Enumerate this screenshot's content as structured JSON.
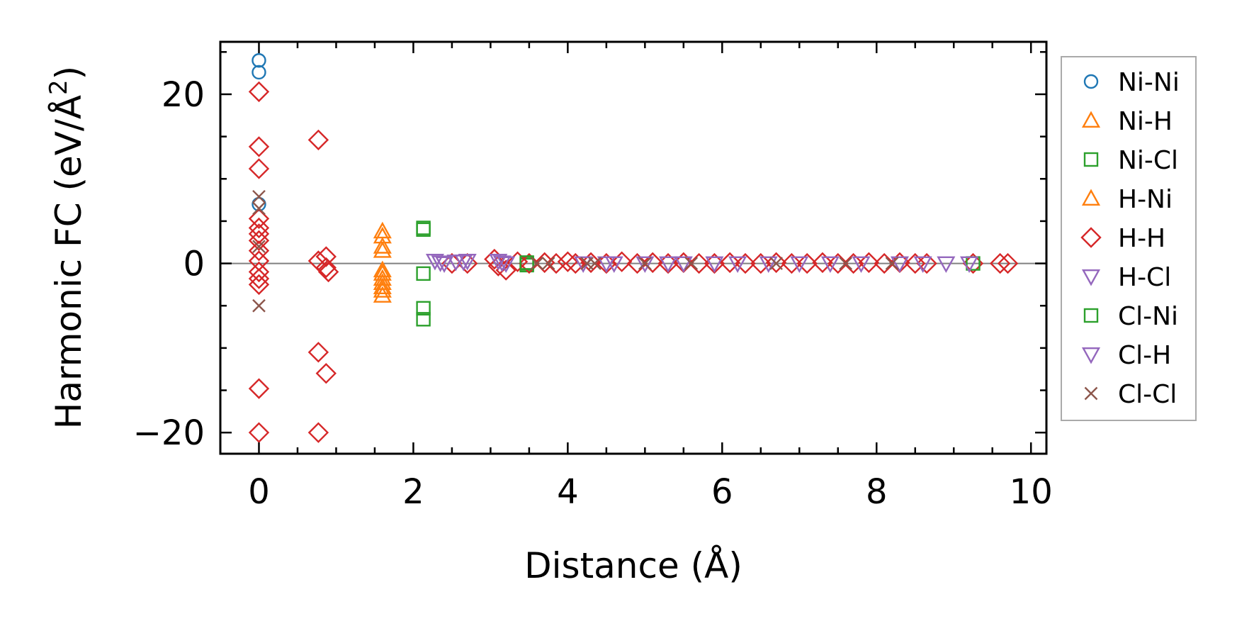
{
  "chart_data": {
    "type": "scatter",
    "title": "",
    "xlabel": "Distance (Å)",
    "ylabel_main": "Harmonic FC (eV/Å",
    "ylabel_sup": "2",
    "ylabel_close": ")",
    "xlim": [
      -0.5,
      10.2
    ],
    "ylim": [
      -22.5,
      26.2
    ],
    "xticks": [
      0,
      2,
      4,
      6,
      8,
      10
    ],
    "xtick_labels": [
      "0",
      "2",
      "4",
      "6",
      "8",
      "10"
    ],
    "yticks": [
      -20,
      0,
      20
    ],
    "ytick_labels": [
      "−20",
      "0",
      "20"
    ],
    "zero_line": true,
    "grid": false,
    "legend_position": "outside-right",
    "series": [
      {
        "name": "Ni-Ni",
        "marker": "circle",
        "color": "#1f77b4",
        "x": [
          0,
          0,
          0
        ],
        "y": [
          24.0,
          22.6,
          7.0
        ]
      },
      {
        "name": "Ni-H",
        "marker": "triangle-up",
        "color": "#ff7f0e",
        "x": [
          1.6,
          1.6,
          1.6,
          1.6,
          1.6,
          1.6
        ],
        "y": [
          3.8,
          2.0,
          -0.8,
          -1.8,
          -2.8,
          -3.8
        ]
      },
      {
        "name": "Ni-Cl",
        "marker": "square",
        "color": "#2ca02c",
        "x": [
          2.13,
          2.13,
          2.13,
          2.13,
          3.47,
          3.47
        ],
        "y": [
          4.0,
          -1.2,
          -5.3,
          -6.6,
          0.0,
          -0.2
        ]
      },
      {
        "name": "H-Ni",
        "marker": "triangle-up",
        "color": "#ff7f0e",
        "x": [
          1.6,
          1.6,
          1.6,
          1.6,
          1.6
        ],
        "y": [
          3.2,
          1.5,
          -1.2,
          -2.3,
          -3.2
        ]
      },
      {
        "name": "H-H",
        "marker": "diamond",
        "color": "#d62728",
        "x": [
          0,
          0,
          0,
          0,
          0,
          0,
          0,
          0,
          0,
          0,
          0,
          0,
          0,
          0,
          0.77,
          0.77,
          0.77,
          0.77,
          0.87,
          0.87,
          0.87,
          0.9,
          2.5,
          2.7,
          3.05,
          3.1,
          3.2,
          3.35,
          3.5,
          3.7,
          3.85,
          4.0,
          4.1,
          4.3,
          4.5,
          4.7,
          4.9,
          5.1,
          5.3,
          5.5,
          5.7,
          5.9,
          6.1,
          6.3,
          6.5,
          6.7,
          6.9,
          7.1,
          7.3,
          7.5,
          7.7,
          7.9,
          8.1,
          8.3,
          8.5,
          8.65,
          9.25,
          9.6,
          9.7
        ],
        "y": [
          20.3,
          13.8,
          11.2,
          5.3,
          4.2,
          3.5,
          2.7,
          1.5,
          0.3,
          -1.0,
          -1.8,
          -2.5,
          -14.8,
          -20.0,
          14.6,
          0.3,
          -10.5,
          -20.0,
          0.8,
          -0.5,
          -13.0,
          -1.0,
          0.0,
          0.0,
          0.5,
          -0.3,
          -0.8,
          0.2,
          0.0,
          0.1,
          0.0,
          0.2,
          0.0,
          0.1,
          0.0,
          0.2,
          0.0,
          0.1,
          0.0,
          0.1,
          0.0,
          0.0,
          0.1,
          0.0,
          0.0,
          0.1,
          0.0,
          0.0,
          0.1,
          0.0,
          0.0,
          0.1,
          0.0,
          0.1,
          0.0,
          0.0,
          0.0,
          0.0,
          0.0
        ]
      },
      {
        "name": "H-Cl",
        "marker": "triangle-down",
        "color": "#9467bd",
        "x": [
          2.28,
          2.4,
          2.55,
          2.7,
          3.1,
          3.2,
          4.2,
          4.5,
          5.3,
          5.9,
          6.6,
          7.4,
          8.3,
          8.9
        ],
        "y": [
          0.3,
          0.0,
          0.2,
          0.3,
          0.3,
          0.0,
          0.0,
          0.0,
          0.0,
          0.0,
          0.0,
          0.0,
          0.0,
          0.0
        ]
      },
      {
        "name": "Cl-Ni",
        "marker": "square",
        "color": "#2ca02c",
        "x": [
          2.13,
          3.47,
          9.25
        ],
        "y": [
          4.2,
          0.1,
          0.0
        ]
      },
      {
        "name": "Cl-H",
        "marker": "triangle-down",
        "color": "#9467bd",
        "x": [
          2.35,
          2.65,
          3.15,
          4.6,
          5.0,
          5.5,
          6.2,
          7.0,
          7.8,
          8.6,
          9.2
        ],
        "y": [
          0.1,
          0.2,
          0.1,
          0.0,
          0.0,
          0.0,
          0.0,
          0.0,
          0.0,
          0.0,
          0.0
        ]
      },
      {
        "name": "Cl-Cl",
        "marker": "x",
        "color": "#8c564b",
        "x": [
          0,
          0,
          0,
          0,
          3.6,
          3.75,
          4.25,
          4.35,
          5.0,
          5.6,
          6.7,
          7.6,
          8.2
        ],
        "y": [
          7.9,
          6.5,
          2.0,
          -5.0,
          0.0,
          0.0,
          0.0,
          0.0,
          0.0,
          0.0,
          0.0,
          0.0,
          0.0
        ]
      }
    ]
  }
}
